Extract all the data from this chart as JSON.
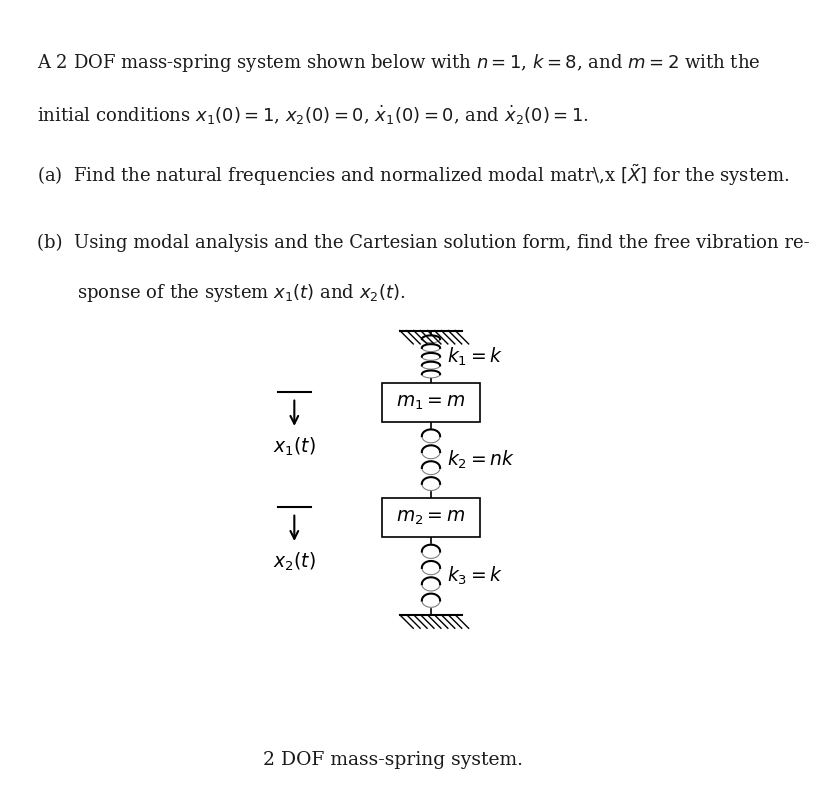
{
  "bg_color": "#ffffff",
  "fig_width": 8.14,
  "fig_height": 7.86,
  "dpi": 100,
  "title_bar_color": "#3a3a3a",
  "text_color": "#1a1a1a",
  "header_text_line1": "A 2 DOF mass-spring system shown below with $n = 1$, $k = 8$, and $m = 2$ with the",
  "header_text_line2": "initial conditions $x_1(0) = 1$, $x_2(0) = 0$, $\\dot{x}_1(0) = 0$, and $\\dot{x}_2(0) = 1$.",
  "part_a": "(a)  Find the natural frequencies and normalized modal matr\\,x $[\\tilde{X}]$ for the system.",
  "part_b_line1": "(b)  Using modal analysis and the Cartesian solution form, find the free vibration re-",
  "part_b_line2": "       sponse of the system $x_1(t)$ and $x_2(t)$.",
  "caption": "2 DOF mass-spring system.",
  "m1_label": "$m_1 = m$",
  "m2_label": "$m_2 = m$",
  "k1_label": "$k_1 = k$",
  "k2_label": "$k_2 = nk$",
  "k3_label": "$k_3 = k$",
  "x1_label": "$x_1(t)$",
  "x2_label": "$x_2(t)$"
}
